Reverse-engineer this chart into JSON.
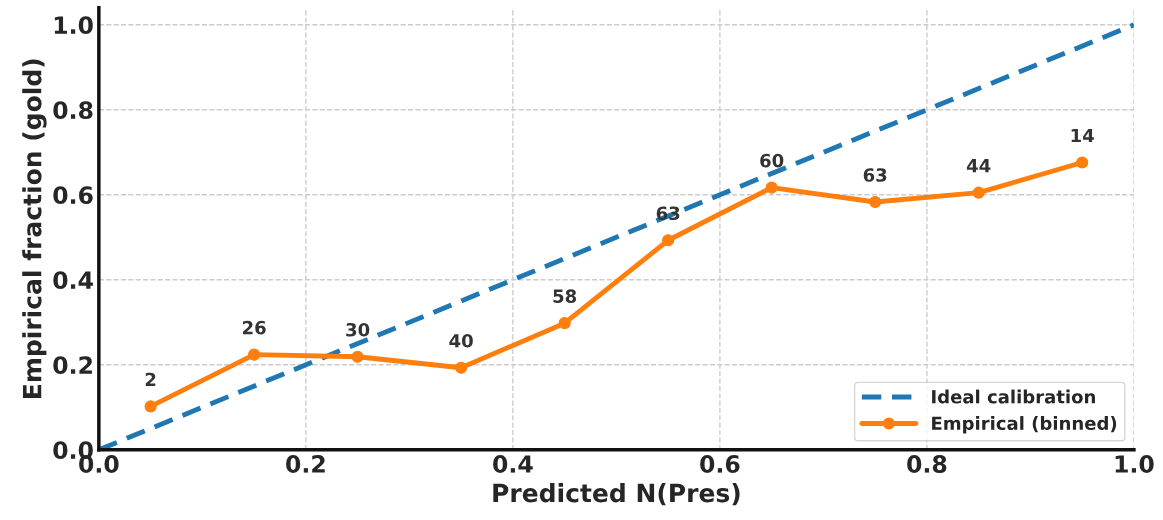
{
  "chart_data": {
    "type": "line",
    "xlabel": "Predicted N(Pres)",
    "ylabel": "Empirical fraction (gold)",
    "xlim": [
      0,
      1
    ],
    "ylim": [
      0,
      1.04
    ],
    "xticks": [
      {
        "value": 0,
        "label": "0.0"
      },
      0.2,
      0.4,
      0.6,
      0.8,
      {
        "value": 1,
        "label": "1.0"
      }
    ],
    "yticks": [
      {
        "value": 0,
        "label": "0.0"
      },
      0.2,
      0.4,
      0.6,
      0.8,
      {
        "value": 1,
        "label": "1.0"
      }
    ],
    "grid": true,
    "legend": "bottom right",
    "series": [
      {
        "name": "Ideal calibration",
        "color": "#1f77b4",
        "x": [
          0,
          1
        ],
        "values": [
          0,
          1
        ],
        "line_style": "dashed",
        "marker": "none"
      },
      {
        "name": "Empirical (binned)",
        "color": "#ff7f0e",
        "x": [
          0.05,
          0.15,
          0.25,
          0.35,
          0.45,
          0.55,
          0.65,
          0.75,
          0.85,
          0.95
        ],
        "values": [
          0.102,
          0.224,
          0.219,
          0.193,
          0.298,
          0.493,
          0.617,
          0.583,
          0.605,
          0.676
        ],
        "line_style": "solid",
        "marker": "circle"
      }
    ],
    "annotations": [
      {
        "text": "2",
        "x": 0.05,
        "y": 0.102
      },
      {
        "text": "26",
        "x": 0.15,
        "y": 0.224
      },
      {
        "text": "30",
        "x": 0.25,
        "y": 0.219
      },
      {
        "text": "40",
        "x": 0.35,
        "y": 0.193
      },
      {
        "text": "58",
        "x": 0.45,
        "y": 0.298
      },
      {
        "text": "63",
        "x": 0.55,
        "y": 0.493
      },
      {
        "text": "60",
        "x": 0.65,
        "y": 0.617
      },
      {
        "text": "63",
        "x": 0.75,
        "y": 0.583
      },
      {
        "text": "44",
        "x": 0.85,
        "y": 0.605
      },
      {
        "text": "14",
        "x": 0.95,
        "y": 0.676
      }
    ]
  }
}
